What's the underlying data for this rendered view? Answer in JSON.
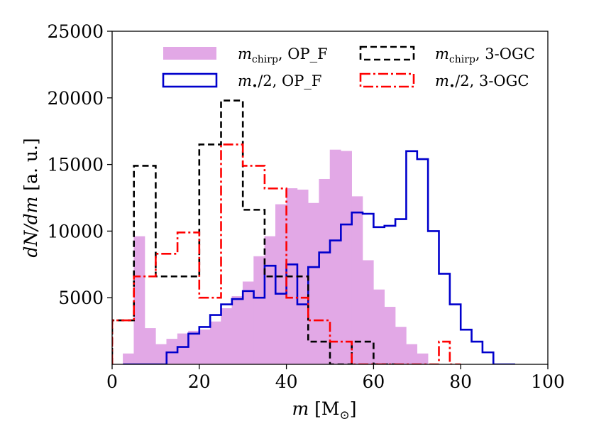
{
  "chart_data": {
    "type": "histogram",
    "title": "",
    "xlabel_main": "m",
    "xlabel_unit": "[M",
    "xlabel_unit_sub": "⊙",
    "xlabel_close": "]",
    "ylabel": "dN/dm",
    "ylabel_unit": "[a. u.]",
    "xlim": [
      0,
      100
    ],
    "ylim": [
      0,
      25000
    ],
    "xticks": [
      0,
      20,
      40,
      60,
      80,
      100
    ],
    "yticks": [
      5000,
      10000,
      15000,
      20000,
      25000
    ],
    "legend_position": "top",
    "series": [
      {
        "name": "m_chirp, OP_F",
        "label_main": "m",
        "label_sub": "chirp",
        "label_rest": ", OP_F",
        "style": "filled",
        "color": "#e2a8e6",
        "bin_width": 2.5,
        "bins_start": 2.5,
        "values": [
          800,
          9600,
          2700,
          1500,
          1900,
          2300,
          2500,
          2600,
          3200,
          4200,
          5100,
          6200,
          8100,
          9600,
          12000,
          13200,
          13100,
          12100,
          13900,
          16100,
          16000,
          12600,
          7800,
          5600,
          4300,
          2800,
          1500,
          800,
          0,
          0
        ]
      },
      {
        "name": "m_*/2, OP_F",
        "label_main": "m",
        "label_sub": "•",
        "label_rest": "/2, OP_F",
        "style": "step",
        "color": "#0000cc",
        "dash": "none",
        "bin_width": 2.5,
        "bins_start": 2.5,
        "values": [
          0,
          0,
          0,
          0,
          900,
          1300,
          2300,
          2800,
          3700,
          4500,
          4900,
          5500,
          5000,
          7400,
          5300,
          7500,
          4500,
          7300,
          8400,
          9300,
          10500,
          11400,
          11300,
          10300,
          10400,
          10900,
          16000,
          15400,
          10000,
          6800,
          4500,
          2600,
          1700,
          900,
          0,
          0
        ],
        "values_start_x": 2.5,
        "extra_bins": [
          1000,
          0
        ]
      },
      {
        "name": "m_chirp, 3-OGC",
        "label_main": "m",
        "label_sub": "chirp",
        "label_rest": ", 3-OGC",
        "style": "step",
        "color": "#000000",
        "dash": "9,5",
        "bin_width": 5,
        "bins_start": 0,
        "values": [
          3300,
          14900,
          6600,
          6600,
          16500,
          19800,
          11600,
          6600,
          6600,
          1700,
          0,
          1700,
          0
        ]
      },
      {
        "name": "m_*/2, 3-OGC",
        "label_main": "m",
        "label_sub": "•",
        "label_rest": "/2, 3-OGC",
        "style": "step",
        "color": "#ff0000",
        "dash": "14,4,3,4",
        "bin_width": 2.5,
        "bins_start": 0,
        "values": [
          3300,
          3300,
          6600,
          6600,
          8300,
          8300,
          9900,
          9900,
          5000,
          5000,
          16500,
          16500,
          14900,
          14900,
          13200,
          13200,
          5000,
          5000,
          3300,
          3300,
          1700,
          1700,
          0,
          0,
          0,
          0,
          0,
          0,
          0,
          0,
          1700,
          0
        ]
      }
    ]
  }
}
